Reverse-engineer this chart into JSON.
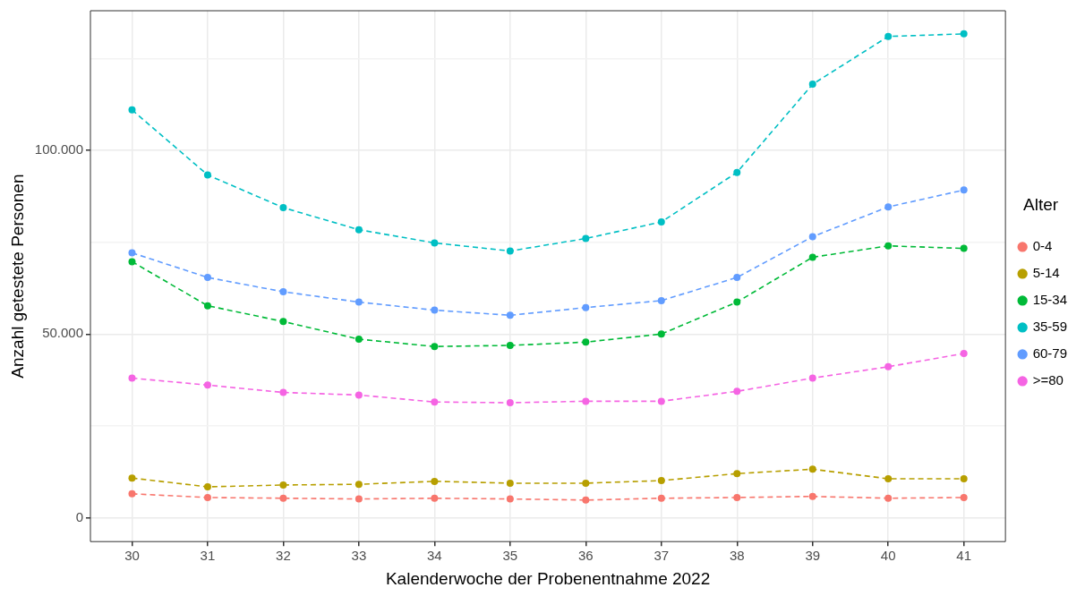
{
  "chart_data": {
    "type": "line",
    "xlabel": "Kalenderwoche der Probenentnahme 2022",
    "ylabel": "Anzahl getestete Personen",
    "legend_title": "Alter",
    "x": [
      30,
      31,
      32,
      33,
      34,
      35,
      36,
      37,
      38,
      39,
      40,
      41
    ],
    "xlim": [
      29.45,
      41.55
    ],
    "xticks": [
      30,
      31,
      32,
      33,
      34,
      35,
      36,
      37,
      38,
      39,
      40,
      41
    ],
    "ylim": [
      -6500,
      138000
    ],
    "yticks": [
      {
        "value": 0,
        "label": "0"
      },
      {
        "value": 25000,
        "label": null
      },
      {
        "value": 50000,
        "label": "50.000"
      },
      {
        "value": 75000,
        "label": null
      },
      {
        "value": 100000,
        "label": "100.000"
      },
      {
        "value": 125000,
        "label": null
      }
    ],
    "grid": true,
    "legend": "right",
    "marker": "circle",
    "line_style": "dashed",
    "series": [
      {
        "name": "0-4",
        "color": "#f8766d",
        "values": [
          6500,
          5500,
          5300,
          5100,
          5300,
          5100,
          4800,
          5300,
          5500,
          5800,
          5300,
          5500
        ]
      },
      {
        "name": "5-14",
        "color": "#b79f00",
        "values": [
          10800,
          8400,
          8900,
          9100,
          9900,
          9400,
          9400,
          10100,
          12000,
          13200,
          10600,
          10600
        ]
      },
      {
        "name": "15-34",
        "color": "#00ba38",
        "values": [
          69700,
          57700,
          53400,
          48600,
          46600,
          46900,
          47800,
          50000,
          58700,
          70900,
          74000,
          73300
        ]
      },
      {
        "name": "35-59",
        "color": "#00bfc4",
        "values": [
          111000,
          93300,
          84400,
          78400,
          74800,
          72600,
          76000,
          80500,
          94000,
          118000,
          131000,
          131700
        ]
      },
      {
        "name": "60-79",
        "color": "#619cff",
        "values": [
          72100,
          65400,
          61500,
          58700,
          56500,
          55100,
          57200,
          59100,
          65400,
          76500,
          84600,
          89200
        ]
      },
      {
        "name": ">=80",
        "color": "#f564e3",
        "values": [
          38000,
          36100,
          34100,
          33400,
          31500,
          31300,
          31700,
          31700,
          34400,
          38000,
          41100,
          44700
        ]
      }
    ]
  }
}
